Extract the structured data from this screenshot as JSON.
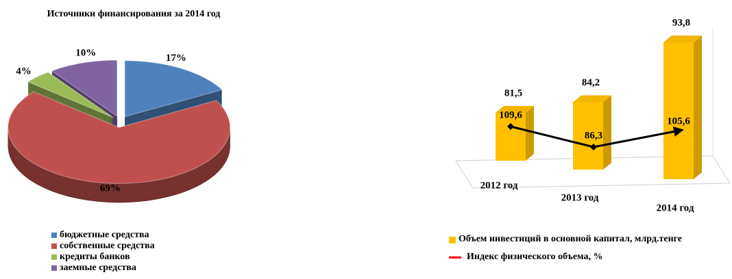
{
  "chart_data": [
    {
      "type": "pie",
      "title": "Источники финансирования за 2014 год",
      "categories": [
        "бюджетные средства",
        "собственные средства",
        "кредиты банков",
        "заемные средства"
      ],
      "values": [
        17,
        69,
        4,
        10
      ],
      "value_labels": [
        "17%",
        "69%",
        "4%",
        "10%"
      ],
      "colors": [
        "#4f81bd",
        "#c0504d",
        "#9bbb59",
        "#8064a2"
      ],
      "legend": "bottom"
    },
    {
      "type": "bar_line",
      "categories": [
        "2012 год",
        "2013 год",
        "2014 год"
      ],
      "series": [
        {
          "name": "Объем инвестиций в основной капитал, млрд.тенге",
          "type": "bar",
          "color": "#ffc000",
          "values": [
            81.5,
            84.2,
            93.8
          ],
          "value_labels": [
            "81,5",
            "84,2",
            "93,8"
          ]
        },
        {
          "name": "Индекс физического объема, %",
          "type": "line",
          "color": "#000000",
          "legend_color": "#ff0000",
          "values": [
            109.6,
            86.3,
            105.6
          ],
          "value_labels": [
            "109,6",
            "86,3",
            "105,6"
          ]
        }
      ],
      "legend": "bottom"
    }
  ]
}
